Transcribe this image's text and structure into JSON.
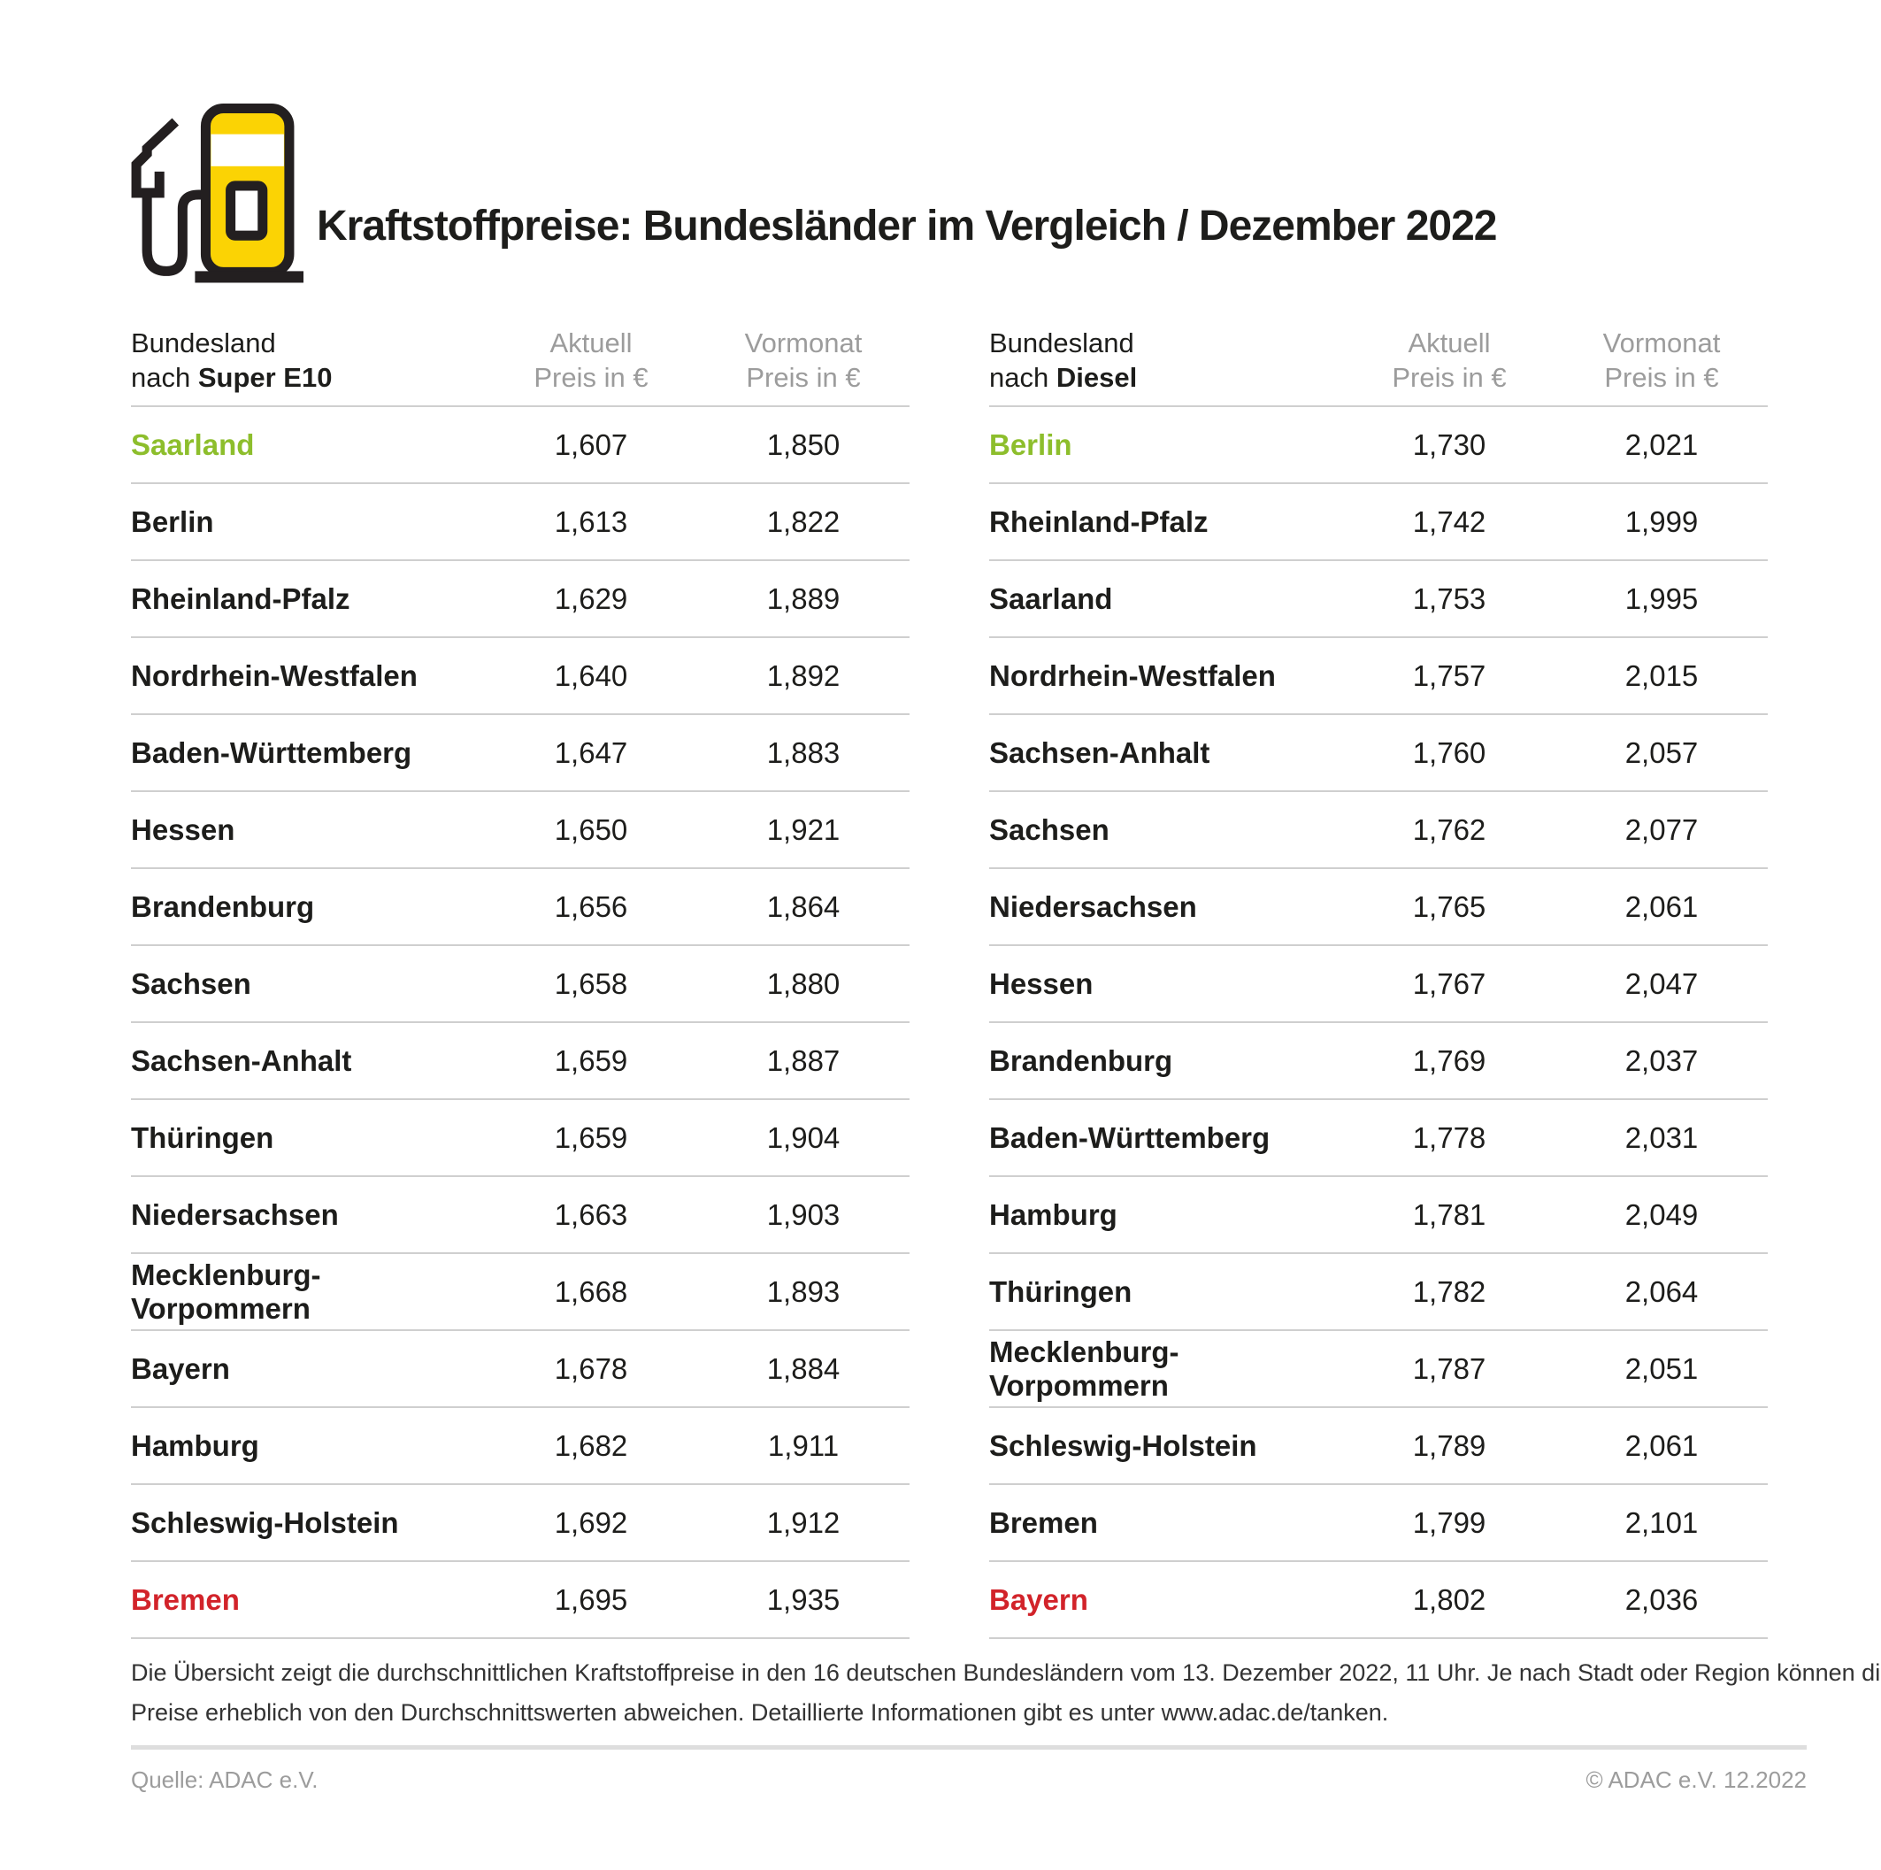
{
  "header": {
    "title": "Kraftstoffpreise: Bundesländer im Vergleich / Dezember 2022",
    "icon": "fuel-pump-icon"
  },
  "colors": {
    "adac_yellow": "#FBD304",
    "outline_black": "#231F20",
    "highlight_green": "#8DBE2C",
    "highlight_red": "#D2232A",
    "header_gray": "#9C9C9C",
    "divider_gray": "#CFCFCF"
  },
  "tables": [
    {
      "id": "super-e10",
      "col1_line1": "Bundesland",
      "col1_line2_prefix": "nach ",
      "col1_line2_bold": "Super E10",
      "col2_line1": "Aktuell",
      "col2_line2": "Preis in €",
      "col3_line1": "Vormonat",
      "col3_line2": "Preis in €",
      "rows": [
        {
          "name": "Saarland",
          "aktuell": "1,607",
          "vormonat": "1,850",
          "highlight": "green"
        },
        {
          "name": "Berlin",
          "aktuell": "1,613",
          "vormonat": "1,822",
          "highlight": ""
        },
        {
          "name": "Rheinland-Pfalz",
          "aktuell": "1,629",
          "vormonat": "1,889",
          "highlight": ""
        },
        {
          "name": "Nordrhein-Westfalen",
          "aktuell": "1,640",
          "vormonat": "1,892",
          "highlight": ""
        },
        {
          "name": "Baden-Württemberg",
          "aktuell": "1,647",
          "vormonat": "1,883",
          "highlight": ""
        },
        {
          "name": "Hessen",
          "aktuell": "1,650",
          "vormonat": "1,921",
          "highlight": ""
        },
        {
          "name": "Brandenburg",
          "aktuell": "1,656",
          "vormonat": "1,864",
          "highlight": ""
        },
        {
          "name": "Sachsen",
          "aktuell": "1,658",
          "vormonat": "1,880",
          "highlight": ""
        },
        {
          "name": "Sachsen-Anhalt",
          "aktuell": "1,659",
          "vormonat": "1,887",
          "highlight": ""
        },
        {
          "name": "Thüringen",
          "aktuell": "1,659",
          "vormonat": "1,904",
          "highlight": ""
        },
        {
          "name": "Niedersachsen",
          "aktuell": "1,663",
          "vormonat": "1,903",
          "highlight": ""
        },
        {
          "name": "Mecklenburg-Vorpommern",
          "aktuell": "1,668",
          "vormonat": "1,893",
          "highlight": ""
        },
        {
          "name": "Bayern",
          "aktuell": "1,678",
          "vormonat": "1,884",
          "highlight": ""
        },
        {
          "name": "Hamburg",
          "aktuell": "1,682",
          "vormonat": "1,911",
          "highlight": ""
        },
        {
          "name": "Schleswig-Holstein",
          "aktuell": "1,692",
          "vormonat": "1,912",
          "highlight": ""
        },
        {
          "name": "Bremen",
          "aktuell": "1,695",
          "vormonat": "1,935",
          "highlight": "red"
        }
      ]
    },
    {
      "id": "diesel",
      "col1_line1": "Bundesland",
      "col1_line2_prefix": "nach ",
      "col1_line2_bold": "Diesel",
      "col2_line1": "Aktuell",
      "col2_line2": "Preis in €",
      "col3_line1": "Vormonat",
      "col3_line2": "Preis in €",
      "rows": [
        {
          "name": "Berlin",
          "aktuell": "1,730",
          "vormonat": "2,021",
          "highlight": "green"
        },
        {
          "name": "Rheinland-Pfalz",
          "aktuell": "1,742",
          "vormonat": "1,999",
          "highlight": ""
        },
        {
          "name": "Saarland",
          "aktuell": "1,753",
          "vormonat": "1,995",
          "highlight": ""
        },
        {
          "name": "Nordrhein-Westfalen",
          "aktuell": "1,757",
          "vormonat": "2,015",
          "highlight": ""
        },
        {
          "name": "Sachsen-Anhalt",
          "aktuell": "1,760",
          "vormonat": "2,057",
          "highlight": ""
        },
        {
          "name": "Sachsen",
          "aktuell": "1,762",
          "vormonat": "2,077",
          "highlight": ""
        },
        {
          "name": "Niedersachsen",
          "aktuell": "1,765",
          "vormonat": "2,061",
          "highlight": ""
        },
        {
          "name": "Hessen",
          "aktuell": "1,767",
          "vormonat": "2,047",
          "highlight": ""
        },
        {
          "name": "Brandenburg",
          "aktuell": "1,769",
          "vormonat": "2,037",
          "highlight": ""
        },
        {
          "name": "Baden-Württemberg",
          "aktuell": "1,778",
          "vormonat": "2,031",
          "highlight": ""
        },
        {
          "name": "Hamburg",
          "aktuell": "1,781",
          "vormonat": "2,049",
          "highlight": ""
        },
        {
          "name": "Thüringen",
          "aktuell": "1,782",
          "vormonat": "2,064",
          "highlight": ""
        },
        {
          "name": "Mecklenburg-Vorpommern",
          "aktuell": "1,787",
          "vormonat": "2,051",
          "highlight": ""
        },
        {
          "name": "Schleswig-Holstein",
          "aktuell": "1,789",
          "vormonat": "2,061",
          "highlight": ""
        },
        {
          "name": "Bremen",
          "aktuell": "1,799",
          "vormonat": "2,101",
          "highlight": ""
        },
        {
          "name": "Bayern",
          "aktuell": "1,802",
          "vormonat": "2,036",
          "highlight": "red"
        }
      ]
    }
  ],
  "footnote": {
    "line1": "Die Übersicht zeigt die durchschnittlichen Kraftstoffpreise in den 16 deutschen Bundesländern vom 13. Dezember 2022, 11 Uhr. Je nach Stadt oder Region können die",
    "line2": "Preise erheblich von den Durchschnittswerten abweichen. Detaillierte Informationen gibt es unter www.adac.de/tanken."
  },
  "source_left": "Quelle: ADAC e.V.",
  "source_right": "© ADAC e.V. 12.2022",
  "chart_data": [
    {
      "type": "table",
      "title": "Bundesland nach Super E10",
      "columns": [
        "Bundesland",
        "Aktuell Preis in €",
        "Vormonat Preis in €"
      ],
      "rows": [
        [
          "Saarland",
          1.607,
          1.85
        ],
        [
          "Berlin",
          1.613,
          1.822
        ],
        [
          "Rheinland-Pfalz",
          1.629,
          1.889
        ],
        [
          "Nordrhein-Westfalen",
          1.64,
          1.892
        ],
        [
          "Baden-Württemberg",
          1.647,
          1.883
        ],
        [
          "Hessen",
          1.65,
          1.921
        ],
        [
          "Brandenburg",
          1.656,
          1.864
        ],
        [
          "Sachsen",
          1.658,
          1.88
        ],
        [
          "Sachsen-Anhalt",
          1.659,
          1.887
        ],
        [
          "Thüringen",
          1.659,
          1.904
        ],
        [
          "Niedersachsen",
          1.663,
          1.903
        ],
        [
          "Mecklenburg-Vorpommern",
          1.668,
          1.893
        ],
        [
          "Bayern",
          1.678,
          1.884
        ],
        [
          "Hamburg",
          1.682,
          1.911
        ],
        [
          "Schleswig-Holstein",
          1.692,
          1.912
        ],
        [
          "Bremen",
          1.695,
          1.935
        ]
      ],
      "annotations": {
        "cheapest": "Saarland",
        "most_expensive": "Bremen"
      }
    },
    {
      "type": "table",
      "title": "Bundesland nach Diesel",
      "columns": [
        "Bundesland",
        "Aktuell Preis in €",
        "Vormonat Preis in €"
      ],
      "rows": [
        [
          "Berlin",
          1.73,
          2.021
        ],
        [
          "Rheinland-Pfalz",
          1.742,
          1.999
        ],
        [
          "Saarland",
          1.753,
          1.995
        ],
        [
          "Nordrhein-Westfalen",
          1.757,
          2.015
        ],
        [
          "Sachsen-Anhalt",
          1.76,
          2.057
        ],
        [
          "Sachsen",
          1.762,
          2.077
        ],
        [
          "Niedersachsen",
          1.765,
          2.061
        ],
        [
          "Hessen",
          1.767,
          2.047
        ],
        [
          "Brandenburg",
          1.769,
          2.037
        ],
        [
          "Baden-Württemberg",
          1.778,
          2.031
        ],
        [
          "Hamburg",
          1.781,
          2.049
        ],
        [
          "Thüringen",
          1.782,
          2.064
        ],
        [
          "Mecklenburg-Vorpommern",
          1.787,
          2.051
        ],
        [
          "Schleswig-Holstein",
          1.789,
          2.061
        ],
        [
          "Bremen",
          1.799,
          2.101
        ],
        [
          "Bayern",
          1.802,
          2.036
        ]
      ],
      "annotations": {
        "cheapest": "Berlin",
        "most_expensive": "Bayern"
      }
    }
  ]
}
